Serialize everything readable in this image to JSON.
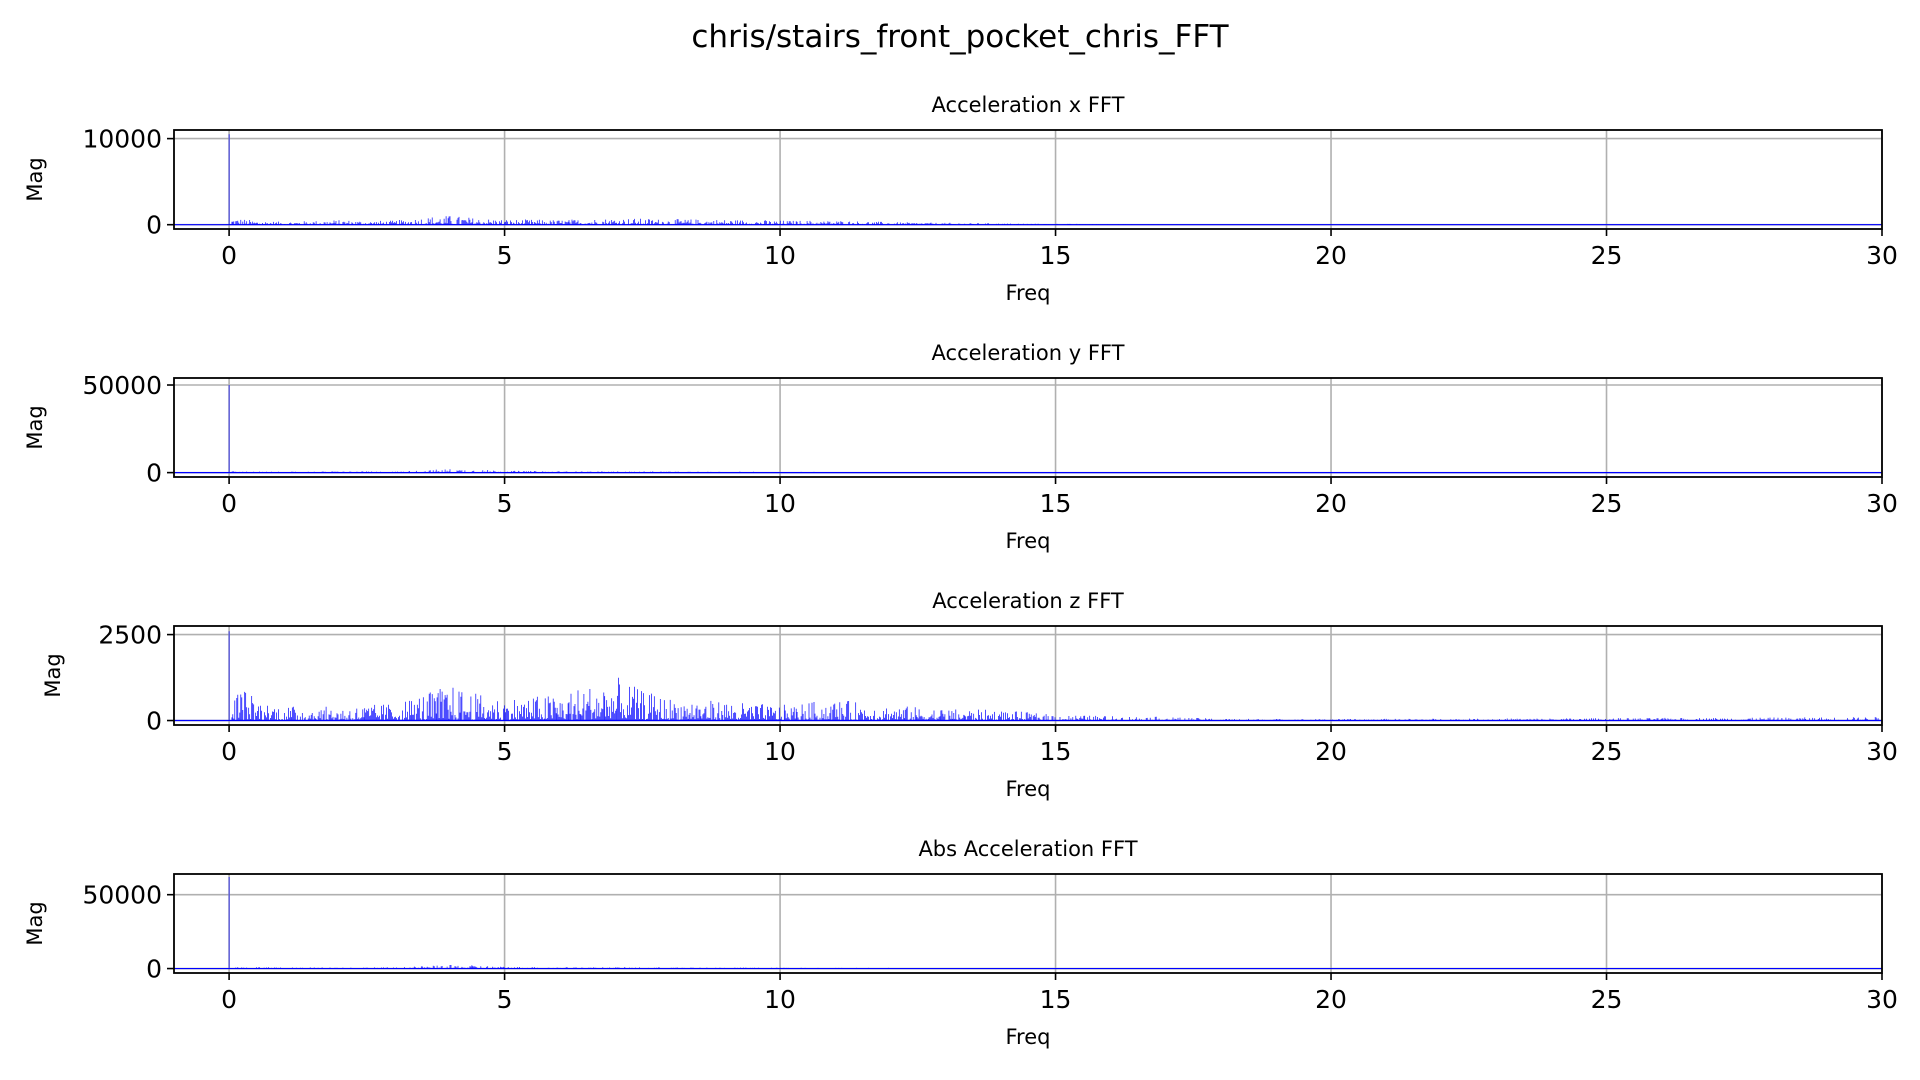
{
  "figure": {
    "title": "chris/stairs_front_pocket_chris_FFT"
  },
  "colors": {
    "line": "#0000ff",
    "grid": "#b0b0b0",
    "axes": "#000000",
    "background": "#ffffff"
  },
  "chart_data": [
    {
      "type": "line",
      "title": "Acceleration x FFT",
      "xlabel": "Freq",
      "ylabel": "Mag",
      "xlim": [
        -1,
        30
      ],
      "ylim": [
        -500,
        11000
      ],
      "xticks": [
        0,
        5,
        10,
        15,
        20,
        25,
        30
      ],
      "yticks": [
        0,
        10000
      ],
      "grid": true,
      "series": [
        {
          "peak": {
            "x": 0,
            "y": 10500
          },
          "envelope": [
            [
              0.1,
              900
            ],
            [
              0.5,
              550
            ],
            [
              1,
              380
            ],
            [
              2,
              650
            ],
            [
              2.5,
              500
            ],
            [
              3,
              550
            ],
            [
              3.5,
              1000
            ],
            [
              4,
              1250
            ],
            [
              4.5,
              900
            ],
            [
              5,
              700
            ],
            [
              6,
              650
            ],
            [
              7,
              900
            ],
            [
              8,
              750
            ],
            [
              9,
              700
            ],
            [
              10,
              550
            ],
            [
              11,
              550
            ],
            [
              12,
              350
            ],
            [
              13,
              250
            ],
            [
              14,
              180
            ],
            [
              15,
              120
            ],
            [
              16,
              80
            ],
            [
              17,
              50
            ],
            [
              20,
              25
            ],
            [
              25,
              20
            ],
            [
              30,
              15
            ]
          ]
        }
      ]
    },
    {
      "type": "line",
      "title": "Acceleration y FFT",
      "xlabel": "Freq",
      "ylabel": "Mag",
      "xlim": [
        -1,
        30
      ],
      "ylim": [
        -2500,
        54000
      ],
      "xticks": [
        0,
        5,
        10,
        15,
        20,
        25,
        30
      ],
      "yticks": [
        0,
        50000
      ],
      "grid": true,
      "series": [
        {
          "peak": {
            "x": 0,
            "y": 50000
          },
          "envelope": [
            [
              0.1,
              900
            ],
            [
              1,
              500
            ],
            [
              2,
              900
            ],
            [
              3,
              700
            ],
            [
              3.5,
              1500
            ],
            [
              4,
              2500
            ],
            [
              4.5,
              2200
            ],
            [
              5,
              1200
            ],
            [
              6,
              900
            ],
            [
              7,
              800
            ],
            [
              8,
              700
            ],
            [
              9,
              600
            ],
            [
              10,
              500
            ],
            [
              12,
              350
            ],
            [
              14,
              250
            ],
            [
              16,
              150
            ],
            [
              20,
              80
            ],
            [
              25,
              50
            ],
            [
              30,
              40
            ]
          ]
        }
      ]
    },
    {
      "type": "line",
      "title": "Acceleration z FFT",
      "xlabel": "Freq",
      "ylabel": "Mag",
      "xlim": [
        -1,
        30
      ],
      "ylim": [
        -130,
        2750
      ],
      "xticks": [
        0,
        5,
        10,
        15,
        20,
        25,
        30
      ],
      "yticks": [
        0,
        2500
      ],
      "grid": true,
      "series": [
        {
          "peak": {
            "x": 0,
            "y": 2600
          },
          "envelope": [
            [
              0.1,
              800
            ],
            [
              0.2,
              1250
            ],
            [
              0.5,
              700
            ],
            [
              1,
              500
            ],
            [
              2,
              450
            ],
            [
              3,
              600
            ],
            [
              3.5,
              900
            ],
            [
              4,
              1200
            ],
            [
              4.5,
              900
            ],
            [
              5,
              750
            ],
            [
              6,
              900
            ],
            [
              7,
              1450
            ],
            [
              7.5,
              1000
            ],
            [
              8,
              750
            ],
            [
              9,
              650
            ],
            [
              10,
              500
            ],
            [
              11,
              700
            ],
            [
              12,
              500
            ],
            [
              13,
              400
            ],
            [
              14,
              350
            ],
            [
              15,
              200
            ],
            [
              16,
              150
            ],
            [
              17,
              120
            ],
            [
              18,
              60
            ],
            [
              20,
              50
            ],
            [
              25,
              80
            ],
            [
              28,
              100
            ],
            [
              30,
              120
            ]
          ]
        }
      ]
    },
    {
      "type": "line",
      "title": "Abs Acceleration FFT",
      "xlabel": "Freq",
      "ylabel": "Mag",
      "xlim": [
        -1,
        30
      ],
      "ylim": [
        -3000,
        64000
      ],
      "xticks": [
        0,
        5,
        10,
        15,
        20,
        25,
        30
      ],
      "yticks": [
        0,
        50000
      ],
      "grid": true,
      "series": [
        {
          "peak": {
            "x": 0,
            "y": 62000
          },
          "envelope": [
            [
              0.1,
              1500
            ],
            [
              1,
              900
            ],
            [
              2,
              1000
            ],
            [
              3,
              900
            ],
            [
              3.5,
              1800
            ],
            [
              4,
              2800
            ],
            [
              4.5,
              2500
            ],
            [
              5,
              1500
            ],
            [
              6,
              1100
            ],
            [
              7,
              1000
            ],
            [
              8,
              900
            ],
            [
              9,
              800
            ],
            [
              10,
              700
            ],
            [
              12,
              500
            ],
            [
              14,
              350
            ],
            [
              16,
              250
            ],
            [
              20,
              150
            ],
            [
              25,
              100
            ],
            [
              30,
              80
            ]
          ]
        }
      ]
    }
  ]
}
